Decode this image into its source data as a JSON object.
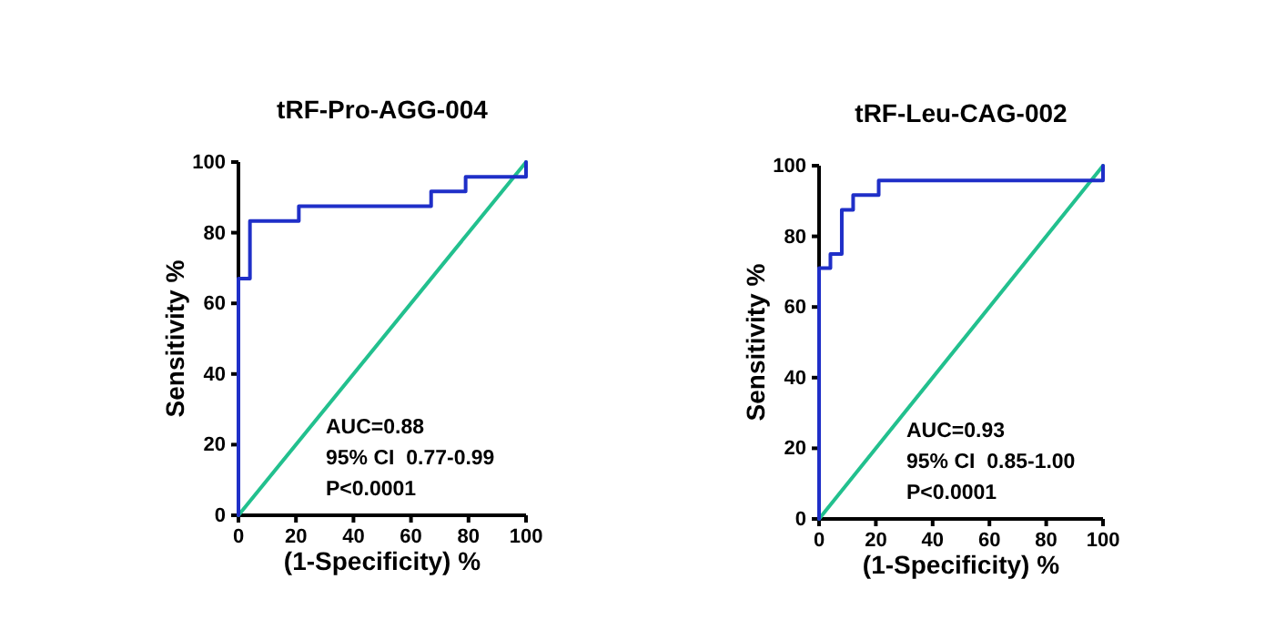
{
  "chart_data": [
    {
      "type": "line",
      "title": "tRF-Pro-AGG-004",
      "xlabel": "(1-Specificity) %",
      "ylabel": "Sensitivity %",
      "xlim": [
        0,
        100
      ],
      "ylim": [
        0,
        100
      ],
      "xticks": [
        0,
        20,
        40,
        60,
        80,
        100
      ],
      "yticks": [
        0,
        20,
        40,
        60,
        80,
        100
      ],
      "grid": false,
      "marker": "none",
      "series": [
        {
          "color": "#1f2fc8",
          "x": [
            0,
            0,
            4,
            4,
            21,
            21,
            67,
            67,
            79,
            79,
            100,
            100
          ],
          "values": [
            0,
            67,
            67,
            83.3,
            83.3,
            87.5,
            87.5,
            91.7,
            91.7,
            95.8,
            95.8,
            100
          ]
        },
        {
          "color": "#22c08e",
          "x": [
            0,
            100
          ],
          "values": [
            0,
            100
          ]
        }
      ],
      "annotations": [
        "AUC=0.88",
        "95% CI  0.77-0.99",
        "P<0.0001"
      ]
    },
    {
      "type": "line",
      "title": "tRF-Leu-CAG-002",
      "xlabel": "(1-Specificity) %",
      "ylabel": "Sensitivity %",
      "xlim": [
        0,
        100
      ],
      "ylim": [
        0,
        100
      ],
      "xticks": [
        0,
        20,
        40,
        60,
        80,
        100
      ],
      "yticks": [
        0,
        20,
        40,
        60,
        80,
        100
      ],
      "grid": false,
      "marker": "none",
      "series": [
        {
          "color": "#1f2fc8",
          "x": [
            0,
            0,
            4,
            4,
            8,
            8,
            12,
            12,
            21,
            21,
            100,
            100
          ],
          "values": [
            0,
            71,
            71,
            75,
            75,
            87.5,
            87.5,
            91.7,
            91.7,
            95.8,
            95.8,
            100
          ]
        },
        {
          "color": "#22c08e",
          "x": [
            0,
            100
          ],
          "values": [
            0,
            100
          ]
        }
      ],
      "annotations": [
        "AUC=0.93",
        "95% CI  0.85-1.00",
        "P<0.0001"
      ]
    }
  ]
}
